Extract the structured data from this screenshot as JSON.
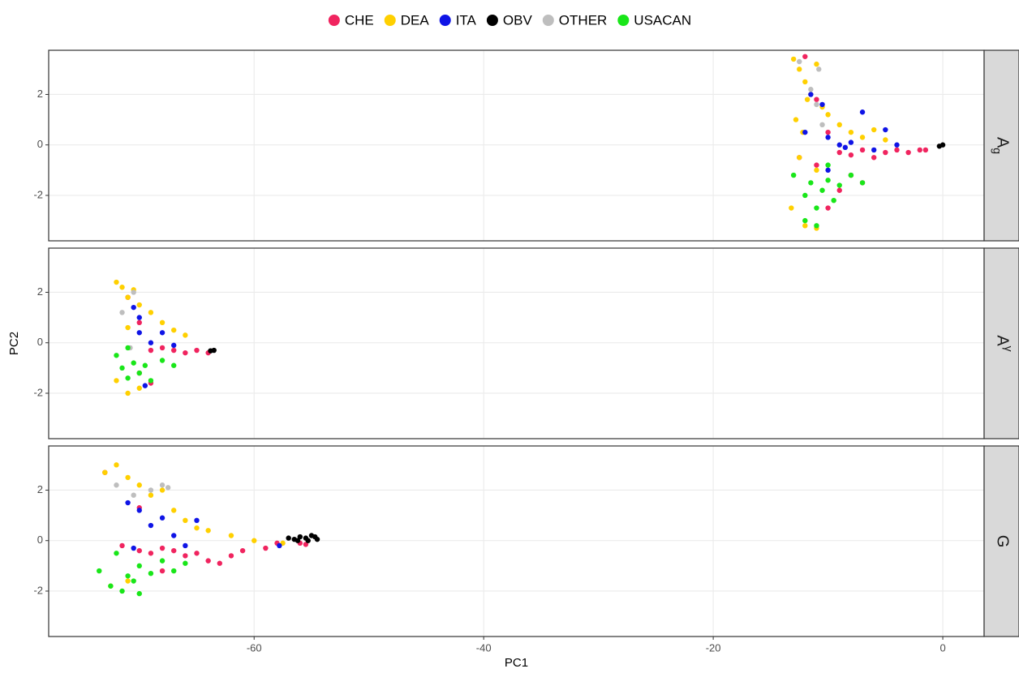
{
  "chart_data": [
    {
      "type": "scatter",
      "facet_label": "A",
      "facet_label_sub": "g",
      "xlim": [
        -77.9,
        3.6
      ],
      "xticks": [
        -60,
        -40,
        -20,
        0
      ],
      "ylim": [
        -3.8,
        3.75
      ],
      "yticks": [
        -2,
        0,
        2
      ],
      "grid": true,
      "series": [
        {
          "name": "CHE",
          "color": "#f0245f",
          "x": [
            -12,
            -11,
            -10,
            -9,
            -8,
            -7,
            -6,
            -5,
            -4,
            -3,
            -2,
            -1.5,
            -10,
            -9,
            -8,
            -11,
            -12.5,
            -7
          ],
          "values": [
            3.5,
            1.8,
            0.5,
            -0.3,
            -0.4,
            -0.2,
            -0.5,
            -0.3,
            -0.2,
            -0.3,
            -0.2,
            -0.2,
            -2.5,
            -1.8,
            -1.2,
            -0.8,
            -0.5,
            -1.5
          ]
        },
        {
          "name": "DEA",
          "color": "#ffd000",
          "x": [
            -13,
            -12.5,
            -12,
            -11.5,
            -11,
            -10.5,
            -12.8,
            -12.2,
            -11.8,
            -10,
            -9,
            -8,
            -7,
            -6,
            -5,
            -12.5,
            -11,
            -13.2,
            -12,
            -11
          ],
          "values": [
            3.4,
            3,
            2.5,
            2,
            3.2,
            1.5,
            1,
            0.5,
            1.8,
            1.2,
            0.8,
            0.5,
            0.3,
            0.6,
            0.2,
            -0.5,
            -1,
            -2.5,
            -3.2,
            -3.3
          ]
        },
        {
          "name": "ITA",
          "color": "#0f14e6",
          "x": [
            -11.5,
            -10.5,
            -10,
            -9,
            -8,
            -7,
            -6,
            -5,
            -4,
            -8.5,
            -10,
            -12
          ],
          "values": [
            2,
            1.6,
            0.3,
            0,
            0.1,
            1.3,
            -0.2,
            0.6,
            0,
            -0.1,
            -1,
            0.5
          ]
        },
        {
          "name": "OBV",
          "color": "#000000",
          "x": [
            0,
            -0.3
          ],
          "values": [
            0,
            -0.05
          ]
        },
        {
          "name": "OTHER",
          "color": "#bebebe",
          "x": [
            -12.5,
            -11.5,
            -10.8,
            -10.5,
            -11
          ],
          "values": [
            3.3,
            2.2,
            3,
            0.8,
            1.6
          ]
        },
        {
          "name": "USACAN",
          "color": "#19e619",
          "x": [
            -13,
            -12,
            -11.5,
            -11,
            -10.5,
            -10,
            -9.5,
            -9,
            -8,
            -7,
            -12,
            -11,
            -10
          ],
          "values": [
            -1.2,
            -2,
            -1.5,
            -2.5,
            -1.8,
            -1.4,
            -2.2,
            -1.6,
            -1.2,
            -1.5,
            -3,
            -3.2,
            -0.8
          ]
        }
      ]
    },
    {
      "type": "scatter",
      "facet_label": "A",
      "facet_label_sup": "γ",
      "ylabel": "PC2",
      "xlim": [
        -77.9,
        3.6
      ],
      "xticks": [
        -60,
        -40,
        -20,
        0
      ],
      "ylim": [
        -3.8,
        3.75
      ],
      "yticks": [
        -2,
        0,
        2
      ],
      "grid": true,
      "series": [
        {
          "color": "#f0245f",
          "x": [
            -71,
            -70,
            -69,
            -68,
            -67,
            -66,
            -65,
            -64,
            -70,
            -69
          ],
          "values": [
            1.8,
            0.8,
            -0.3,
            -0.2,
            -0.3,
            -0.4,
            -0.3,
            -0.4,
            -1.2,
            -1.6
          ]
        },
        {
          "color": "#ffd000",
          "x": [
            -72,
            -71.5,
            -71,
            -70.5,
            -70,
            -69,
            -68,
            -67,
            -66,
            -71,
            -70,
            -72,
            -71
          ],
          "values": [
            2.4,
            2.2,
            1.8,
            2.1,
            1.5,
            1.2,
            0.8,
            0.5,
            0.3,
            0.6,
            -1.8,
            -1.5,
            -2
          ]
        },
        {
          "color": "#0f14e6",
          "x": [
            -70.5,
            -70,
            -69,
            -68,
            -67,
            -69.5,
            -70
          ],
          "values": [
            1.4,
            0.4,
            0,
            0.4,
            -0.1,
            -1.7,
            1
          ]
        },
        {
          "color": "#000000",
          "x": [
            -63.5,
            -63.8
          ],
          "values": [
            -0.3,
            -0.32
          ]
        },
        {
          "color": "#bebebe",
          "x": [
            -71.5,
            -70.5,
            -70.8
          ],
          "values": [
            1.2,
            2,
            -0.2
          ]
        },
        {
          "color": "#19e619",
          "x": [
            -72,
            -71.5,
            -71,
            -70.5,
            -70,
            -69.5,
            -69,
            -68,
            -67,
            -71
          ],
          "values": [
            -0.5,
            -1,
            -1.4,
            -0.8,
            -1.2,
            -0.9,
            -1.5,
            -0.7,
            -0.9,
            -0.2
          ]
        }
      ]
    },
    {
      "type": "scatter",
      "facet_label": "G",
      "xlabel": "PC1",
      "xlim": [
        -77.9,
        3.6
      ],
      "xticks": [
        -60,
        -40,
        -20,
        0
      ],
      "ylim": [
        -3.8,
        3.75
      ],
      "yticks": [
        -2,
        0,
        2
      ],
      "grid": true,
      "series": [
        {
          "color": "#f0245f",
          "x": [
            -73,
            -71.5,
            -70,
            -69,
            -68,
            -67,
            -66,
            -65,
            -64,
            -63,
            -62,
            -61,
            -59,
            -58,
            -56,
            -55.5,
            -70,
            -68
          ],
          "values": [
            2.7,
            -0.2,
            -0.4,
            -0.5,
            -0.3,
            -0.4,
            -0.6,
            -0.5,
            -0.8,
            -0.9,
            -0.6,
            -0.4,
            -0.3,
            -0.1,
            -0.1,
            -0.15,
            1.3,
            -1.2
          ]
        },
        {
          "color": "#ffd000",
          "x": [
            -73,
            -72,
            -71,
            -70,
            -69,
            -68,
            -67,
            -66,
            -65,
            -64,
            -62,
            -60,
            -57.5,
            -72.5,
            -71
          ],
          "values": [
            2.7,
            3,
            2.5,
            2.2,
            1.8,
            2,
            1.2,
            0.8,
            0.5,
            0.4,
            0.2,
            0,
            -0.1,
            -1.8,
            -1.6
          ]
        },
        {
          "color": "#0f14e6",
          "x": [
            -71,
            -70,
            -69,
            -68,
            -67,
            -66,
            -65,
            -70.5,
            -57.8
          ],
          "values": [
            1.5,
            1.2,
            0.6,
            0.9,
            0.2,
            -0.2,
            0.8,
            -0.3,
            -0.2
          ]
        },
        {
          "color": "#000000",
          "x": [
            -57,
            -56.5,
            -56,
            -55.5,
            -55,
            -54.7,
            -54.5,
            -56.2,
            -55.3
          ],
          "values": [
            0.1,
            0.05,
            0.15,
            0.1,
            0.2,
            0.15,
            0.05,
            0,
            0
          ]
        },
        {
          "color": "#bebebe",
          "x": [
            -72,
            -70.5,
            -69,
            -68,
            -67.5
          ],
          "values": [
            2.2,
            1.8,
            2,
            2.2,
            2.1
          ]
        },
        {
          "color": "#19e619",
          "x": [
            -73.5,
            -72.5,
            -71.5,
            -71,
            -70.5,
            -70,
            -69,
            -68,
            -67,
            -66,
            -72,
            -70
          ],
          "values": [
            -1.2,
            -1.8,
            -2,
            -1.4,
            -1.6,
            -1,
            -1.3,
            -0.8,
            -1.2,
            -0.9,
            -0.5,
            -2.1
          ]
        }
      ]
    }
  ]
}
